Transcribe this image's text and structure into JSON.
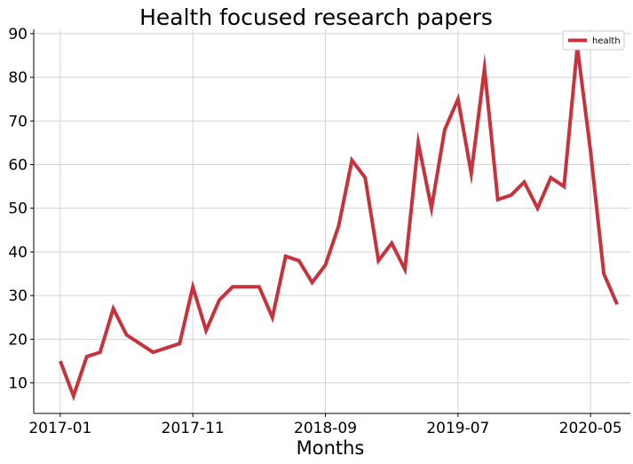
{
  "chart_data": {
    "type": "line",
    "title": "Health focused research papers",
    "xlabel": "Months",
    "ylabel": "",
    "ylim": [
      3,
      91
    ],
    "x_range": [
      "2016-11-01",
      "2020-08-01"
    ],
    "yticks": [
      10,
      20,
      30,
      40,
      50,
      60,
      70,
      80,
      90
    ],
    "xticks": [
      "2017-01",
      "2017-11",
      "2018-09",
      "2019-07",
      "2020-05"
    ],
    "grid": true,
    "legend_position": "top-right",
    "series": [
      {
        "name": "health",
        "color": "#c8323c",
        "x": [
          "2017-01",
          "2017-02",
          "2017-03",
          "2017-04",
          "2017-05",
          "2017-06",
          "2017-08",
          "2017-10",
          "2017-11",
          "2017-12",
          "2018-01",
          "2018-02",
          "2018-04",
          "2018-05",
          "2018-06",
          "2018-07",
          "2018-08",
          "2018-09",
          "2018-10",
          "2018-11",
          "2018-12",
          "2019-01",
          "2019-02",
          "2019-03",
          "2019-04",
          "2019-05",
          "2019-06",
          "2019-07",
          "2019-08",
          "2019-09",
          "2019-10",
          "2019-11",
          "2019-12",
          "2020-01",
          "2020-02",
          "2020-03",
          "2020-04",
          "2020-05",
          "2020-06",
          "2020-07"
        ],
        "values": [
          15,
          7,
          16,
          17,
          27,
          21,
          17,
          19,
          32,
          22,
          29,
          32,
          32,
          25,
          39,
          38,
          33,
          37,
          46,
          61,
          57,
          38,
          42,
          36,
          65,
          50,
          68,
          75,
          58,
          82,
          52,
          53,
          56,
          50,
          57,
          55,
          87,
          63,
          35,
          28
        ]
      }
    ]
  }
}
